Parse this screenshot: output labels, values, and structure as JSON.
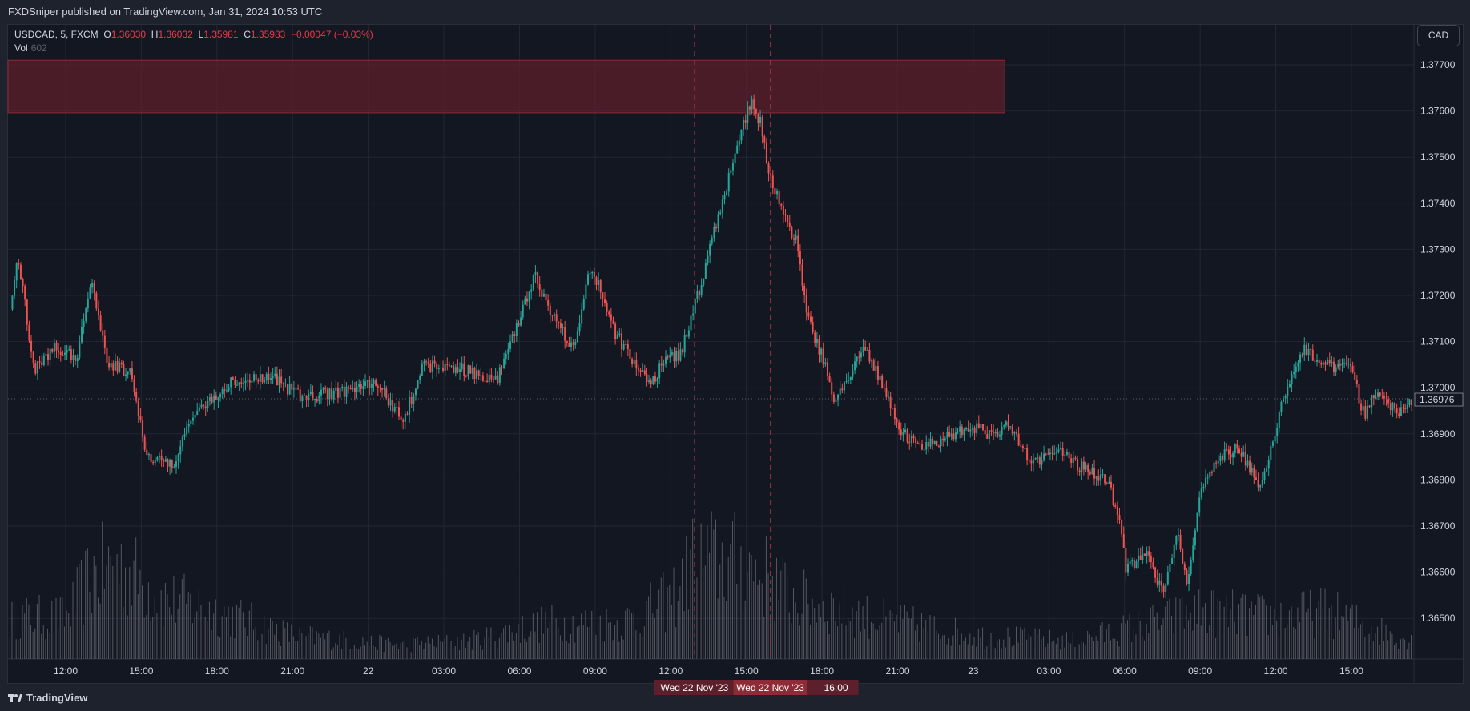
{
  "header": {
    "published": "FXDSniper published on TradingView.com, Jan 31, 2024 10:53 UTC"
  },
  "legend": {
    "symbol": "USDCAD, 5, FXCM",
    "o_label": "O",
    "o": "1.36030",
    "h_label": "H",
    "h": "1.36032",
    "l_label": "L",
    "l": "1.35981",
    "c_label": "C",
    "c": "1.35983",
    "change": "−0.00047 (−0.03%)",
    "vol_label": "Vol",
    "vol": "602"
  },
  "currency_button": "CAD",
  "colors": {
    "up": "#26a69a",
    "down": "#ef5350",
    "zone": "#5c1f2b",
    "bg": "#131722"
  },
  "price_axis": [
    "1.37700",
    "1.37600",
    "1.37500",
    "1.37400",
    "1.37300",
    "1.37200",
    "1.37100",
    "1.37000",
    "1.36900",
    "1.36800",
    "1.36700",
    "1.36600",
    "1.36500"
  ],
  "current_price": "1.36976",
  "time_axis": [
    {
      "h": 0,
      "label": "12:00"
    },
    {
      "h": 3,
      "label": "15:00"
    },
    {
      "h": 6,
      "label": "18:00"
    },
    {
      "h": 9,
      "label": "21:00"
    },
    {
      "h": 12,
      "label": "22"
    },
    {
      "h": 15,
      "label": "03:00"
    },
    {
      "h": 18,
      "label": "06:00"
    },
    {
      "h": 21,
      "label": "09:00"
    },
    {
      "h": 24,
      "label": "12:00"
    },
    {
      "h": 27,
      "label": "15:00"
    },
    {
      "h": 30,
      "label": "18:00"
    },
    {
      "h": 33,
      "label": "21:00"
    },
    {
      "h": 36,
      "label": "23"
    },
    {
      "h": 39,
      "label": "03:00"
    },
    {
      "h": 42,
      "label": "06:00"
    },
    {
      "h": 45,
      "label": "09:00"
    },
    {
      "h": 48,
      "label": "12:00"
    },
    {
      "h": 51,
      "label": "15:00"
    }
  ],
  "crosshair_labels": [
    "Wed 22 Nov '23",
    "Wed 22 Nov '23",
    "16:00"
  ],
  "footer": {
    "brand": "TradingView"
  },
  "chart_data": {
    "type": "candlestick",
    "symbol": "USDCAD",
    "timeframe": "5",
    "ylim": [
      1.3645,
      1.3778
    ],
    "price_path": [
      [
        -2.23,
        1.3717
      ],
      [
        -1.93,
        1.3729
      ],
      [
        -1.3,
        1.3704
      ],
      [
        -0.37,
        1.3709
      ],
      [
        0.37,
        1.3706
      ],
      [
        1.0,
        1.3723
      ],
      [
        1.67,
        1.3705
      ],
      [
        2.6,
        1.3703
      ],
      [
        3.16,
        1.3685
      ],
      [
        4.27,
        1.3683
      ],
      [
        4.83,
        1.3693
      ],
      [
        6.51,
        1.3701
      ],
      [
        8.18,
        1.3702
      ],
      [
        9.29,
        1.3698
      ],
      [
        10.78,
        1.3699
      ],
      [
        12.27,
        1.3701
      ],
      [
        13.38,
        1.3693
      ],
      [
        14.13,
        1.3705
      ],
      [
        15.61,
        1.3704
      ],
      [
        17.1,
        1.3702
      ],
      [
        18.22,
        1.3719
      ],
      [
        18.59,
        1.3724
      ],
      [
        19.33,
        1.3715
      ],
      [
        20.07,
        1.3708
      ],
      [
        20.82,
        1.3727
      ],
      [
        21.56,
        1.3714
      ],
      [
        22.3,
        1.3707
      ],
      [
        23.23,
        1.3701
      ],
      [
        23.79,
        1.3707
      ],
      [
        24.35,
        1.3707
      ],
      [
        25.09,
        1.3721
      ],
      [
        25.65,
        1.3733
      ],
      [
        26.39,
        1.3748
      ],
      [
        27.14,
        1.3762
      ],
      [
        27.51,
        1.3758
      ],
      [
        27.88,
        1.3746
      ],
      [
        28.62,
        1.3735
      ],
      [
        28.99,
        1.3731
      ],
      [
        29.37,
        1.3715
      ],
      [
        30.11,
        1.3705
      ],
      [
        30.48,
        1.3697
      ],
      [
        31.23,
        1.3705
      ],
      [
        31.6,
        1.3709
      ],
      [
        32.15,
        1.3703
      ],
      [
        33.08,
        1.3691
      ],
      [
        33.83,
        1.3687
      ],
      [
        34.57,
        1.3688
      ],
      [
        35.87,
        1.3692
      ],
      [
        36.8,
        1.3689
      ],
      [
        37.36,
        1.3692
      ],
      [
        38.29,
        1.3684
      ],
      [
        39.4,
        1.3686
      ],
      [
        40.15,
        1.3683
      ],
      [
        41.26,
        1.368
      ],
      [
        41.82,
        1.3671
      ],
      [
        42.01,
        1.3661
      ],
      [
        42.93,
        1.3664
      ],
      [
        43.49,
        1.3655
      ],
      [
        44.05,
        1.3669
      ],
      [
        44.42,
        1.3657
      ],
      [
        44.98,
        1.3677
      ],
      [
        45.72,
        1.3685
      ],
      [
        46.46,
        1.3687
      ],
      [
        47.39,
        1.3678
      ],
      [
        47.95,
        1.3691
      ],
      [
        48.32,
        1.3699
      ],
      [
        49.07,
        1.3709
      ],
      [
        49.81,
        1.3705
      ],
      [
        50.93,
        1.3704
      ],
      [
        51.48,
        1.3694
      ],
      [
        52.04,
        1.37
      ],
      [
        52.78,
        1.3694
      ],
      [
        53.42,
        1.3698
      ]
    ],
    "volume_profile": [
      [
        -2.3,
        0.35
      ],
      [
        0,
        0.35
      ],
      [
        1,
        0.7
      ],
      [
        2,
        0.8
      ],
      [
        4,
        0.5
      ],
      [
        6,
        0.4
      ],
      [
        9,
        0.2
      ],
      [
        13,
        0.12
      ],
      [
        16,
        0.15
      ],
      [
        19,
        0.3
      ],
      [
        22,
        0.3
      ],
      [
        24,
        0.5
      ],
      [
        25,
        0.85
      ],
      [
        27,
        0.8
      ],
      [
        29,
        0.5
      ],
      [
        32,
        0.35
      ],
      [
        36,
        0.2
      ],
      [
        40,
        0.15
      ],
      [
        43,
        0.3
      ],
      [
        45,
        0.4
      ],
      [
        48,
        0.35
      ],
      [
        50,
        0.4
      ],
      [
        52,
        0.25
      ],
      [
        53.4,
        0.15
      ]
    ],
    "supply_zone": {
      "from_h": -2.3,
      "to_h": 37.25,
      "top": 1.3771,
      "bottom": 1.37596
    },
    "vertical_markers_h": [
      24.94,
      27.95
    ]
  }
}
